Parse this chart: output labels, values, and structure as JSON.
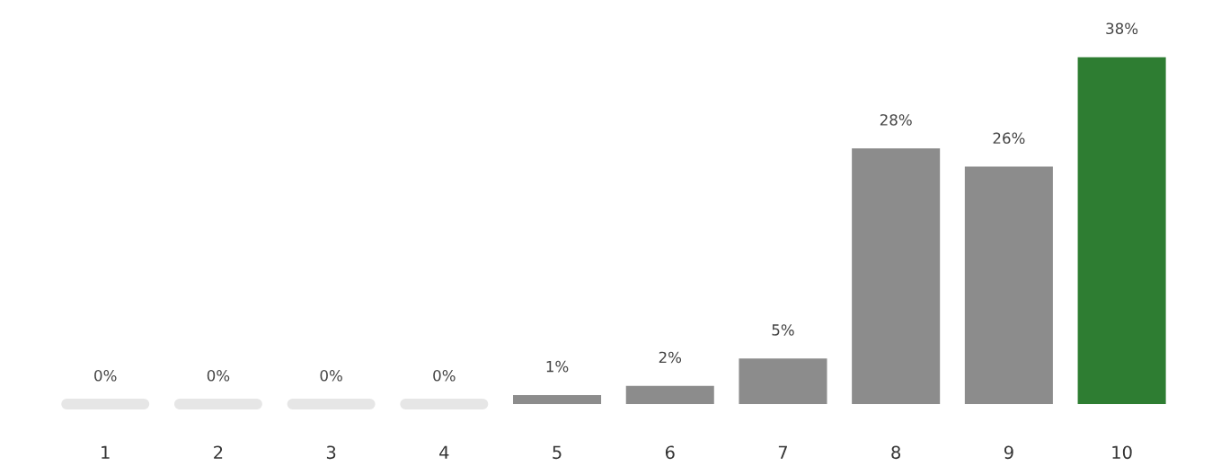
{
  "chart_data": {
    "type": "bar",
    "categories": [
      "1",
      "2",
      "3",
      "4",
      "5",
      "6",
      "7",
      "8",
      "9",
      "10"
    ],
    "values": [
      0,
      0,
      0,
      0,
      1,
      2,
      5,
      28,
      26,
      38
    ],
    "colors": [
      "#e6e6e6",
      "#e6e6e6",
      "#e6e6e6",
      "#e6e6e6",
      "#8c8c8c",
      "#8c8c8c",
      "#8c8c8c",
      "#8c8c8c",
      "#8c8c8c",
      "#2e7d32"
    ],
    "value_labels": [
      "0%",
      "0%",
      "0%",
      "0%",
      "1%",
      "2%",
      "5%",
      "28%",
      "26%",
      "38%"
    ]
  }
}
